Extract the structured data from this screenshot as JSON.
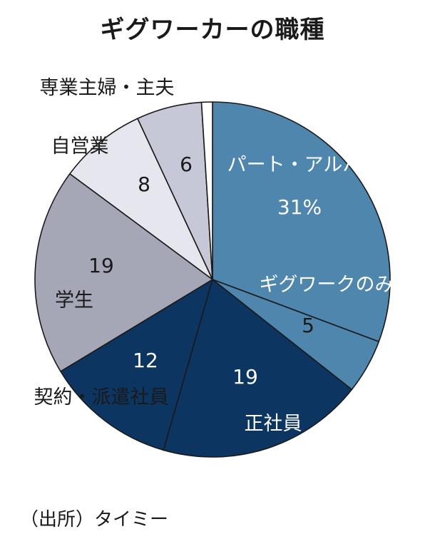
{
  "chart_data": {
    "type": "pie",
    "title": "ギグワーカーの職種",
    "source": "（出所）タイミー",
    "unit": "%",
    "slices": [
      {
        "category": "パート・アルバイト",
        "value": 31,
        "value_label": "31%",
        "color": "#4f86ad"
      },
      {
        "category": "ギグワークのみ",
        "value": 5,
        "value_label": "5",
        "color": "#4f86ad"
      },
      {
        "category": "正社員",
        "value": 19,
        "value_label": "19",
        "color": "#0c3561"
      },
      {
        "category": "契約・派遣社員",
        "value": 12,
        "value_label": "12",
        "color": "#0c3561"
      },
      {
        "category": "学生",
        "value": 19,
        "value_label": "19",
        "color": "#a5a7b6"
      },
      {
        "category": "自営業",
        "value": 8,
        "value_label": "8",
        "color": "#e6e7ee"
      },
      {
        "category": "専業主婦・主夫",
        "value": 6,
        "value_label": "6",
        "color": "#c6c8d7"
      },
      {
        "category": "",
        "value": 1,
        "value_label": "",
        "color": "#ffffff"
      }
    ]
  }
}
